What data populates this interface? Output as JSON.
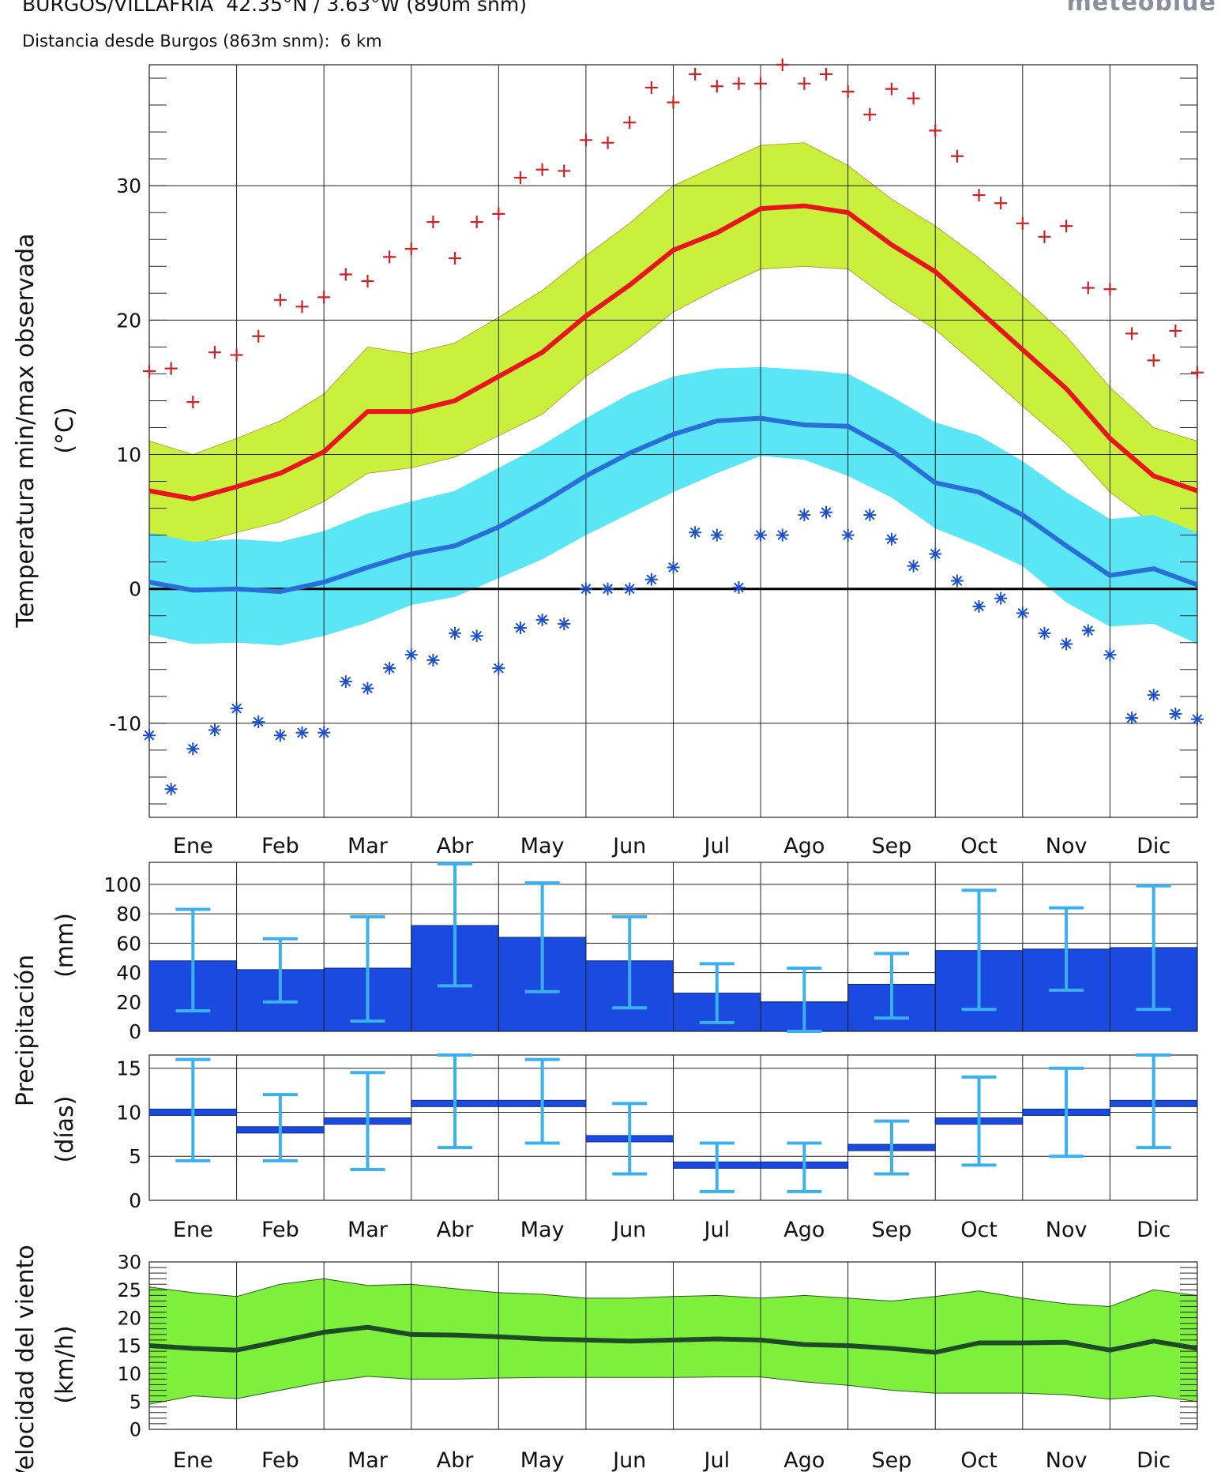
{
  "header": {
    "title": "BURGOS/VILLAFRIA  42.35°N / 3.63°W (890m snm)",
    "subtitle": "Distancia desde Burgos (863m snm):  6 km",
    "logo": "meteoblue"
  },
  "months": [
    "Ene",
    "Feb",
    "Mar",
    "Abr",
    "May",
    "Jun",
    "Jul",
    "Ago",
    "Sep",
    "Oct",
    "Nov",
    "Dic"
  ],
  "chart_data": [
    {
      "type": "area",
      "ylabel": "Temperatura min/max observada",
      "yunit": "(°C)",
      "ylim": [
        -17,
        39
      ],
      "yticks": [
        30,
        20,
        10,
        0,
        -10
      ],
      "x_domain": [
        0,
        12
      ],
      "grid": true,
      "colors": {
        "max_band": "#c8f03c",
        "max_line": "#e8141e",
        "min_band": "#5ae6f5",
        "min_line": "#2a6ed8",
        "record_max": "#cc2222",
        "record_min": "#1a4fd0"
      },
      "series": [
        {
          "role": "max_mean",
          "x": [
            0,
            0.5,
            1,
            1.5,
            2,
            2.5,
            3,
            3.5,
            4,
            4.5,
            5,
            5.5,
            6,
            6.5,
            7,
            7.5,
            8,
            8.5,
            9,
            9.5,
            10,
            10.5,
            11,
            11.5,
            12
          ],
          "y": [
            7.3,
            6.7,
            7.6,
            8.6,
            10.2,
            13.2,
            13.2,
            14.0,
            15.8,
            17.6,
            20.3,
            22.6,
            25.2,
            26.5,
            28.3,
            28.5,
            28.0,
            25.6,
            23.6,
            20.7,
            17.8,
            14.9,
            11.2,
            8.4,
            7.3
          ]
        },
        {
          "role": "max_band_upper",
          "x": [
            0,
            0.5,
            1,
            1.5,
            2,
            2.5,
            3,
            3.5,
            4,
            4.5,
            5,
            5.5,
            6,
            6.5,
            7,
            7.5,
            8,
            8.5,
            9,
            9.5,
            10,
            10.5,
            11,
            11.5,
            12
          ],
          "y": [
            11.0,
            10.0,
            11.2,
            12.5,
            14.5,
            18.0,
            17.5,
            18.3,
            20.2,
            22.2,
            24.8,
            27.2,
            30.0,
            31.5,
            33.0,
            33.2,
            31.5,
            29.0,
            27.0,
            24.6,
            21.8,
            18.8,
            15.0,
            12.0,
            11.0
          ]
        },
        {
          "role": "max_band_lower",
          "x": [
            0,
            0.5,
            1,
            1.5,
            2,
            2.5,
            3,
            3.5,
            4,
            4.5,
            5,
            5.5,
            6,
            6.5,
            7,
            7.5,
            8,
            8.5,
            9,
            9.5,
            10,
            10.5,
            11,
            11.5,
            12
          ],
          "y": [
            3.8,
            3.3,
            4.2,
            5.0,
            6.5,
            8.6,
            9.0,
            9.8,
            11.4,
            13.0,
            15.8,
            18.0,
            20.6,
            22.3,
            23.8,
            24.0,
            23.8,
            21.4,
            19.3,
            16.5,
            13.6,
            10.8,
            7.2,
            4.8,
            3.8
          ]
        },
        {
          "role": "min_mean",
          "x": [
            0,
            0.5,
            1,
            1.5,
            2,
            2.5,
            3,
            3.5,
            4,
            4.5,
            5,
            5.5,
            6,
            6.5,
            7,
            7.5,
            8,
            8.5,
            9,
            9.5,
            10,
            10.5,
            11,
            11.5,
            12
          ],
          "y": [
            0.5,
            -0.1,
            0.0,
            -0.2,
            0.5,
            1.6,
            2.6,
            3.2,
            4.6,
            6.4,
            8.4,
            10.1,
            11.5,
            12.5,
            12.7,
            12.2,
            12.1,
            10.3,
            7.9,
            7.2,
            5.5,
            3.2,
            1.0,
            1.5,
            0.3
          ]
        },
        {
          "role": "min_band_upper",
          "x": [
            0,
            0.5,
            1,
            1.5,
            2,
            2.5,
            3,
            3.5,
            4,
            4.5,
            5,
            5.5,
            6,
            6.5,
            7,
            7.5,
            8,
            8.5,
            9,
            9.5,
            10,
            10.5,
            11,
            11.5,
            12
          ],
          "y": [
            4.2,
            3.5,
            3.7,
            3.5,
            4.3,
            5.6,
            6.5,
            7.3,
            9.0,
            10.7,
            12.7,
            14.5,
            15.8,
            16.4,
            16.5,
            16.3,
            16.0,
            14.3,
            12.4,
            11.4,
            9.5,
            7.2,
            5.2,
            5.5,
            4.2
          ]
        },
        {
          "role": "min_band_lower",
          "x": [
            0,
            0.5,
            1,
            1.5,
            2,
            2.5,
            3,
            3.5,
            4,
            4.5,
            5,
            5.5,
            6,
            6.5,
            7,
            7.5,
            8,
            8.5,
            9,
            9.5,
            10,
            10.5,
            11,
            11.5,
            12
          ],
          "y": [
            -3.4,
            -4.1,
            -4.0,
            -4.2,
            -3.5,
            -2.5,
            -1.2,
            -0.6,
            0.8,
            2.2,
            4.0,
            5.6,
            7.2,
            8.6,
            9.9,
            9.6,
            8.4,
            6.8,
            4.5,
            3.2,
            1.7,
            -1.0,
            -2.8,
            -2.6,
            -4.1
          ]
        },
        {
          "role": "record_max",
          "x": [
            0.0,
            0.25,
            0.5,
            0.75,
            1.0,
            1.25,
            1.5,
            1.75,
            2.0,
            2.25,
            2.5,
            2.75,
            3.0,
            3.25,
            3.5,
            3.75,
            4.0,
            4.25,
            4.5,
            4.75,
            5.0,
            5.25,
            5.5,
            5.75,
            6.0,
            6.25,
            6.5,
            6.75,
            7.0,
            7.25,
            7.5,
            7.75,
            8.0,
            8.25,
            8.5,
            8.75,
            9.0,
            9.25,
            9.5,
            9.75,
            10.0,
            10.25,
            10.5,
            10.75,
            11.0,
            11.25,
            11.5,
            11.75,
            12.0
          ],
          "y": [
            16.2,
            16.4,
            13.9,
            17.6,
            17.4,
            18.8,
            21.5,
            21.0,
            21.7,
            23.4,
            22.9,
            24.7,
            25.3,
            27.3,
            24.6,
            27.3,
            27.9,
            30.6,
            31.2,
            31.1,
            33.4,
            33.2,
            34.7,
            37.3,
            36.2,
            38.3,
            37.4,
            37.6,
            37.6,
            39.0,
            37.6,
            38.3,
            37.0,
            35.3,
            37.2,
            36.5,
            34.1,
            32.2,
            29.3,
            28.7,
            27.2,
            26.2,
            27.0,
            22.4,
            22.3,
            19.0,
            17.0,
            19.2,
            16.1
          ]
        },
        {
          "role": "record_min",
          "x": [
            0.0,
            0.25,
            0.5,
            0.75,
            1.0,
            1.25,
            1.5,
            1.75,
            2.0,
            2.25,
            2.5,
            2.75,
            3.0,
            3.25,
            3.5,
            3.75,
            4.0,
            4.25,
            4.5,
            4.75,
            5.0,
            5.25,
            5.5,
            5.75,
            6.0,
            6.25,
            6.5,
            6.75,
            7.0,
            7.25,
            7.5,
            7.75,
            8.0,
            8.25,
            8.5,
            8.75,
            9.0,
            9.25,
            9.5,
            9.75,
            10.0,
            10.25,
            10.5,
            10.75,
            11.0,
            11.25,
            11.5,
            11.75,
            12.0
          ],
          "y": [
            -10.9,
            -14.9,
            -11.9,
            -10.5,
            -8.9,
            -9.9,
            -10.9,
            -10.7,
            -10.7,
            -6.9,
            -7.4,
            -5.9,
            -4.9,
            -5.3,
            -3.3,
            -3.5,
            -5.9,
            -2.9,
            -2.3,
            -2.6,
            0.0,
            0.0,
            0.0,
            0.7,
            1.6,
            4.2,
            4.0,
            0.1,
            4.0,
            4.0,
            5.5,
            5.7,
            4.0,
            5.5,
            3.7,
            1.7,
            2.6,
            0.6,
            -1.3,
            -0.7,
            -1.8,
            -3.3,
            -4.1,
            -3.1,
            -4.9,
            -9.6,
            -7.9,
            -9.3,
            -9.7
          ]
        }
      ]
    },
    {
      "type": "bar",
      "ylabel": "Precipitación",
      "yunit": "(mm)",
      "ylim": [
        0,
        115
      ],
      "yticks": [
        100,
        80,
        60,
        40,
        20,
        0
      ],
      "categories": [
        "Ene",
        "Feb",
        "Mar",
        "Abr",
        "May",
        "Jun",
        "Jul",
        "Ago",
        "Sep",
        "Oct",
        "Nov",
        "Dic"
      ],
      "values": [
        48,
        42,
        43,
        72,
        64,
        48,
        26,
        20,
        32,
        55,
        56,
        57
      ],
      "error_low": [
        14,
        20,
        7,
        31,
        27,
        16,
        6,
        0,
        9,
        15,
        28,
        15
      ],
      "error_high": [
        83,
        63,
        78,
        114,
        101,
        78,
        46,
        43,
        53,
        96,
        84,
        99
      ],
      "colors": {
        "bar": "#1a4ae0",
        "error": "#3ab0ee"
      }
    },
    {
      "type": "bar",
      "ylabel": "Precipitación",
      "yunit": "(días)",
      "ylim": [
        0,
        16.5
      ],
      "yticks": [
        15,
        10,
        5,
        0
      ],
      "categories": [
        "Ene",
        "Feb",
        "Mar",
        "Abr",
        "May",
        "Jun",
        "Jul",
        "Ago",
        "Sep",
        "Oct",
        "Nov",
        "Dic"
      ],
      "values": [
        10,
        8,
        9,
        11,
        11,
        7,
        4,
        4,
        6,
        9,
        10,
        11
      ],
      "error_low": [
        4.5,
        4.5,
        3.5,
        6,
        6.5,
        3,
        1,
        1,
        3,
        4,
        5,
        6
      ],
      "error_high": [
        16,
        12,
        14.5,
        16.5,
        16,
        11,
        6.5,
        6.5,
        9,
        14,
        15,
        16.5
      ],
      "colors": {
        "bar": "#1a4ae0",
        "error": "#3ab0ee"
      }
    },
    {
      "type": "area",
      "ylabel": "Velocidad del viento",
      "yunit": "(km/h)",
      "ylim": [
        0,
        30
      ],
      "yticks": [
        30,
        25,
        20,
        15,
        10,
        5,
        0
      ],
      "x_domain": [
        0,
        12
      ],
      "grid": true,
      "colors": {
        "band": "#7ef03c",
        "line": "#1e4a28"
      },
      "series": [
        {
          "role": "mean",
          "x": [
            0,
            0.5,
            1,
            1.5,
            2,
            2.5,
            3,
            3.5,
            4,
            4.5,
            5,
            5.5,
            6,
            6.5,
            7,
            7.5,
            8,
            8.5,
            9,
            9.5,
            10,
            10.5,
            11,
            11.5,
            12
          ],
          "y": [
            15,
            14.5,
            14.2,
            15.8,
            17.4,
            18.3,
            17.0,
            16.9,
            16.6,
            16.2,
            16.0,
            15.8,
            16.0,
            16.2,
            16.0,
            15.2,
            15.0,
            14.5,
            13.8,
            15.5,
            15.5,
            15.6,
            14.2,
            15.8,
            14.5
          ]
        },
        {
          "role": "band_upper",
          "x": [
            0,
            0.5,
            1,
            1.5,
            2,
            2.5,
            3,
            3.5,
            4,
            4.5,
            5,
            5.5,
            6,
            6.5,
            7,
            7.5,
            8,
            8.5,
            9,
            9.5,
            10,
            10.5,
            11,
            11.5,
            12
          ],
          "y": [
            25.5,
            24.5,
            23.8,
            26.0,
            27.0,
            25.8,
            26.0,
            25.2,
            24.5,
            24.2,
            23.5,
            23.5,
            23.8,
            24.0,
            23.5,
            24.0,
            23.5,
            23.0,
            23.8,
            24.8,
            23.5,
            22.5,
            22.0,
            25.0,
            24.0
          ]
        },
        {
          "role": "band_lower",
          "x": [
            0,
            0.5,
            1,
            1.5,
            2,
            2.5,
            3,
            3.5,
            4,
            4.5,
            5,
            5.5,
            6,
            6.5,
            7,
            7.5,
            8,
            8.5,
            9,
            9.5,
            10,
            10.5,
            11,
            11.5,
            12
          ],
          "y": [
            4.5,
            6.0,
            5.5,
            7.0,
            8.5,
            9.5,
            9.0,
            9.0,
            9.2,
            9.3,
            9.3,
            9.3,
            9.3,
            9.4,
            9.4,
            8.5,
            7.9,
            7.0,
            6.5,
            6.5,
            6.5,
            6.2,
            5.4,
            6.0,
            5.0
          ]
        }
      ]
    }
  ]
}
